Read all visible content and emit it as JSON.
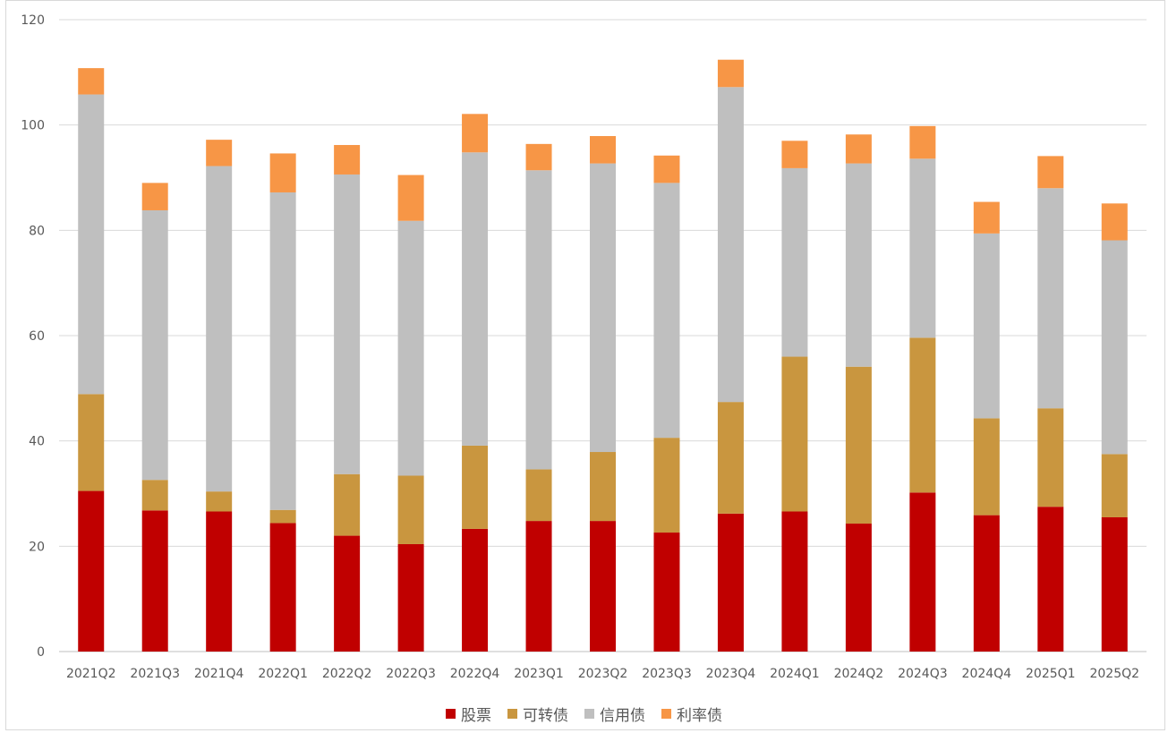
{
  "chart_data": {
    "type": "bar",
    "stacked": true,
    "categories": [
      "2021Q2",
      "2021Q3",
      "2021Q4",
      "2022Q1",
      "2022Q2",
      "2022Q3",
      "2022Q4",
      "2023Q1",
      "2023Q2",
      "2023Q3",
      "2023Q4",
      "2024Q1",
      "2024Q2",
      "2024Q3",
      "2024Q4",
      "2025Q1",
      "2025Q2"
    ],
    "series": [
      {
        "name": "股票",
        "color": "#c00000",
        "values": [
          30.5,
          26.8,
          26.6,
          24.4,
          22.0,
          20.4,
          23.3,
          24.8,
          24.8,
          22.6,
          26.2,
          26.6,
          24.3,
          30.2,
          25.9,
          27.5,
          25.5
        ]
      },
      {
        "name": "可转债",
        "color": "#c9963f",
        "values": [
          18.4,
          5.8,
          3.8,
          2.5,
          11.7,
          13.0,
          15.8,
          9.8,
          13.1,
          18.0,
          21.2,
          29.4,
          29.8,
          29.4,
          18.4,
          18.7,
          12.0
        ]
      },
      {
        "name": "信用债",
        "color": "#bfbfbf",
        "values": [
          56.9,
          51.2,
          61.8,
          60.3,
          56.9,
          48.4,
          55.7,
          56.8,
          54.8,
          48.4,
          59.8,
          35.8,
          38.6,
          34.0,
          35.1,
          41.8,
          40.6
        ]
      },
      {
        "name": "利率债",
        "color": "#f79646",
        "values": [
          5.0,
          5.2,
          5.0,
          7.4,
          5.6,
          8.7,
          7.3,
          5.0,
          5.2,
          5.2,
          5.2,
          5.2,
          5.5,
          6.2,
          6.0,
          6.1,
          7.0
        ]
      }
    ],
    "ylim": [
      0,
      120
    ],
    "yticks": [
      0,
      20,
      40,
      60,
      80,
      100,
      120
    ],
    "grid": true,
    "legend_position": "bottom"
  }
}
